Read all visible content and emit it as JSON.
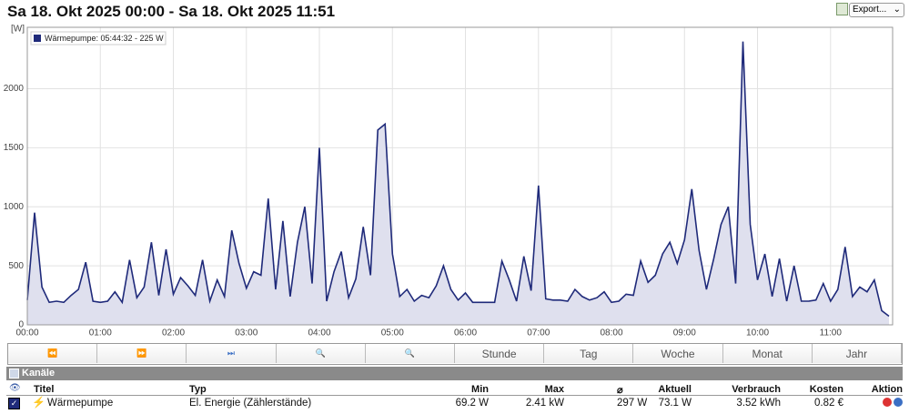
{
  "header": {
    "title": "Sa 18. Okt 2025 00:00 - Sa 18. Okt 2025 11:51",
    "export": "Export..."
  },
  "chart_data": {
    "type": "line",
    "y_label": "[W]",
    "legend_label": "Wärmepumpe: 05:44:32 - 225 W",
    "xlim": [
      0,
      11.85
    ],
    "ylim": [
      0,
      2520
    ],
    "grid": true,
    "xticks": [
      {
        "value": 0,
        "label": "00:00"
      },
      {
        "value": 1,
        "label": "01:00"
      },
      {
        "value": 2,
        "label": "02:00"
      },
      {
        "value": 3,
        "label": "03:00"
      },
      {
        "value": 4,
        "label": "04:00"
      },
      {
        "value": 5,
        "label": "05:00"
      },
      {
        "value": 6,
        "label": "06:00"
      },
      {
        "value": 7,
        "label": "07:00"
      },
      {
        "value": 8,
        "label": "08:00"
      },
      {
        "value": 9,
        "label": "09:00"
      },
      {
        "value": 10,
        "label": "10:00"
      },
      {
        "value": 11,
        "label": "11:00"
      }
    ],
    "yticks": [
      0,
      500,
      1000,
      1500,
      2000
    ],
    "x": [
      0,
      0.1,
      0.2,
      0.3,
      0.4,
      0.5,
      0.6,
      0.7,
      0.8,
      0.9,
      1,
      1.1,
      1.2,
      1.3,
      1.4,
      1.5,
      1.6,
      1.7,
      1.8,
      1.9,
      2,
      2.1,
      2.2,
      2.3,
      2.4,
      2.5,
      2.6,
      2.7,
      2.8,
      2.9,
      3,
      3.1,
      3.2,
      3.3,
      3.4,
      3.5,
      3.6,
      3.7,
      3.8,
      3.9,
      4,
      4.1,
      4.2,
      4.3,
      4.4,
      4.5,
      4.6,
      4.7,
      4.8,
      4.9,
      5,
      5.1,
      5.2,
      5.3,
      5.4,
      5.5,
      5.6,
      5.7,
      5.8,
      5.9,
      6,
      6.1,
      6.2,
      6.3,
      6.4,
      6.5,
      6.6,
      6.7,
      6.8,
      6.9,
      7,
      7.1,
      7.2,
      7.3,
      7.4,
      7.5,
      7.6,
      7.7,
      7.8,
      7.9,
      8,
      8.1,
      8.2,
      8.3,
      8.4,
      8.5,
      8.6,
      8.7,
      8.8,
      8.9,
      9,
      9.1,
      9.2,
      9.3,
      9.4,
      9.5,
      9.6,
      9.7,
      9.8,
      9.9,
      10,
      10.1,
      10.2,
      10.3,
      10.4,
      10.5,
      10.6,
      10.7,
      10.8,
      10.9,
      11,
      11.1,
      11.2,
      11.3,
      11.4,
      11.5,
      11.6,
      11.7,
      11.8
    ],
    "series": [
      {
        "name": "Wärmepumpe",
        "color": "#1f2a7a",
        "fill": "#dfe0ee",
        "values": [
          210,
          950,
          320,
          190,
          200,
          190,
          250,
          300,
          530,
          200,
          190,
          200,
          280,
          190,
          550,
          230,
          320,
          700,
          250,
          640,
          260,
          400,
          330,
          250,
          550,
          200,
          380,
          240,
          800,
          520,
          310,
          450,
          420,
          1070,
          300,
          880,
          240,
          700,
          1000,
          350,
          1500,
          200,
          450,
          620,
          230,
          390,
          830,
          420,
          1650,
          1700,
          600,
          240,
          300,
          200,
          250,
          230,
          330,
          500,
          300,
          210,
          270,
          190,
          190,
          190,
          190,
          540,
          380,
          200,
          580,
          290,
          1180,
          220,
          210,
          210,
          200,
          300,
          240,
          210,
          230,
          280,
          190,
          200,
          260,
          250,
          540,
          360,
          420,
          600,
          700,
          520,
          720,
          1150,
          630,
          300,
          560,
          850,
          1000,
          350,
          2400,
          850,
          380,
          600,
          240,
          560,
          200,
          500,
          200,
          200,
          210,
          350,
          200,
          300,
          660,
          240,
          320,
          280,
          380,
          120,
          73
        ]
      }
    ]
  },
  "buttons": [
    "Stunde",
    "Tag",
    "Woche",
    "Monat",
    "Jahr"
  ],
  "channels": {
    "title": "Kanäle",
    "columns": [
      "Titel",
      "Typ",
      "Min",
      "Max",
      "⌀",
      "Aktuell",
      "Verbrauch",
      "Kosten",
      "Aktion"
    ],
    "rows": [
      [
        "Wärmepumpe",
        "El. Energie (Zählerstände)",
        "69.2 W",
        "2.41 kW",
        "297 W",
        "73.1 W",
        "3.52 kWh",
        "0.82 €"
      ]
    ]
  }
}
